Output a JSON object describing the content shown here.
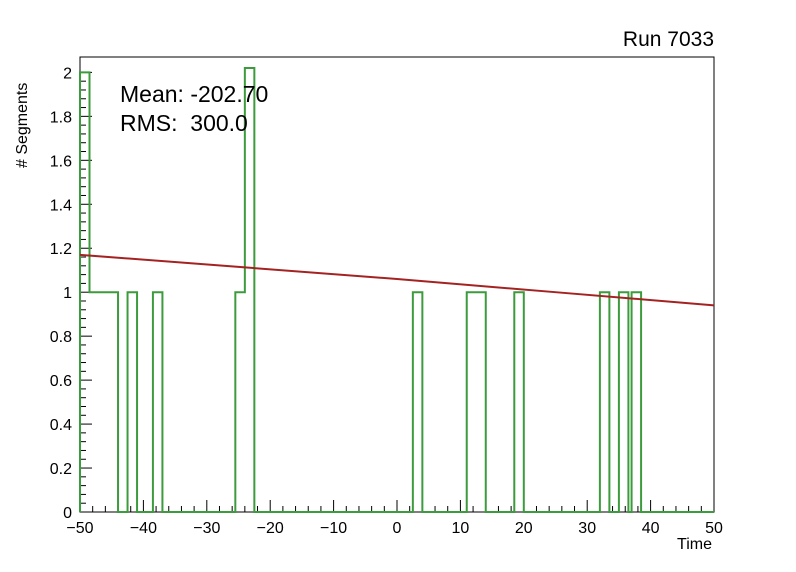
{
  "chart_data": {
    "type": "bar",
    "subtype": "step-histogram-with-fit-line",
    "title": "Run 7033",
    "xlabel": "Time",
    "ylabel": "# Segments",
    "xlim": [
      -50,
      50
    ],
    "ylim": [
      0,
      2.07
    ],
    "grid": false,
    "legend": "none",
    "xticks": [
      -50,
      -40,
      -30,
      -20,
      -10,
      0,
      10,
      20,
      30,
      40,
      50
    ],
    "xtick_labels": [
      "−50",
      "−40",
      "−30",
      "−20",
      "−10",
      "0",
      "10",
      "20",
      "30",
      "40",
      "50"
    ],
    "yticks": [
      0,
      0.2,
      0.4,
      0.6,
      0.8,
      1,
      1.2,
      1.4,
      1.6,
      1.8,
      2
    ],
    "ytick_labels": [
      "0",
      "0.2",
      "0.4",
      "0.6",
      "0.8",
      "1",
      "1.2",
      "1.4",
      "1.6",
      "1.8",
      "2"
    ],
    "x_minor_step": 2,
    "y_minor_step": 0.04,
    "stats": {
      "mean_label": "Mean: -202.70",
      "rms_label": "RMS:  300.0"
    },
    "histogram": {
      "name": "time-segments-histogram",
      "color": "#3c9b3c",
      "segments": [
        [
          -50.0,
          -48.5,
          2
        ],
        [
          -48.5,
          -44.0,
          1
        ],
        [
          -44.0,
          -42.5,
          0
        ],
        [
          -42.5,
          -41.0,
          1
        ],
        [
          -41.0,
          -38.5,
          0
        ],
        [
          -38.5,
          -37.0,
          1
        ],
        [
          -37.0,
          -25.5,
          0
        ],
        [
          -25.5,
          -24.0,
          1
        ],
        [
          -24.0,
          -22.5,
          2.02
        ],
        [
          -22.5,
          2.5,
          0
        ],
        [
          2.5,
          4.0,
          1
        ],
        [
          4.0,
          11.0,
          0
        ],
        [
          11.0,
          14.0,
          1
        ],
        [
          14.0,
          18.5,
          0
        ],
        [
          18.5,
          20.0,
          1
        ],
        [
          20.0,
          32.0,
          0
        ],
        [
          32.0,
          33.5,
          1
        ],
        [
          33.5,
          35.0,
          0
        ],
        [
          35.0,
          36.5,
          1
        ],
        [
          36.5,
          37.0,
          0
        ],
        [
          37.0,
          38.5,
          1
        ],
        [
          38.5,
          50.0,
          0
        ]
      ]
    },
    "fit": {
      "name": "linear-fit-line",
      "color": "#a52222",
      "points": [
        [
          -50,
          1.17
        ],
        [
          -25,
          1.115
        ],
        [
          0,
          1.06
        ],
        [
          25,
          1.0
        ],
        [
          50,
          0.94
        ]
      ]
    }
  }
}
